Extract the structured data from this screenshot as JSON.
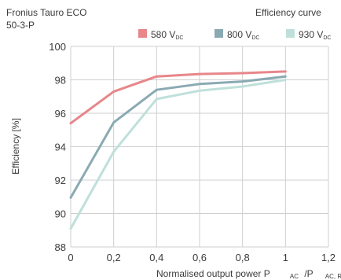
{
  "header": {
    "product_line1": "Fronius Tauro ECO",
    "product_line2": "50-3-P",
    "chart_label": "Efficiency curve"
  },
  "chart_data": {
    "type": "line",
    "title": "Efficiency curve",
    "xlabel": "Normalised output power P",
    "xlabel_sub1": "AC",
    "xlabel_mid": "/P",
    "xlabel_sub2": "AC, R",
    "ylabel": "Efficiency [%]",
    "xlim": [
      0,
      1.2
    ],
    "ylim": [
      88,
      100
    ],
    "x_ticks": [
      0,
      0.2,
      0.4,
      0.6,
      0.8,
      1,
      1.2
    ],
    "x_tick_labels": [
      "0",
      "0,2",
      "0,4",
      "0,6",
      "0,8",
      "1",
      "1,2"
    ],
    "y_ticks": [
      88,
      90,
      92,
      94,
      96,
      98,
      100
    ],
    "y_tick_labels": [
      "88",
      "90",
      "92",
      "94",
      "96",
      "98",
      "100"
    ],
    "grid": true,
    "legend_position": "top-right",
    "x": [
      0,
      0.2,
      0.4,
      0.6,
      0.8,
      1.0
    ],
    "series": [
      {
        "name": "580 V",
        "name_sub": "DC",
        "color": "#e8868a",
        "values": [
          95.4,
          97.3,
          98.2,
          98.35,
          98.4,
          98.5
        ]
      },
      {
        "name": "800 V",
        "name_sub": "DC",
        "color": "#8aaab3",
        "values": [
          90.95,
          95.45,
          97.4,
          97.75,
          97.9,
          98.2
        ]
      },
      {
        "name": "930 V",
        "name_sub": "DC",
        "color": "#bfe0da",
        "values": [
          89.1,
          93.7,
          96.85,
          97.35,
          97.6,
          98.0
        ]
      }
    ]
  }
}
